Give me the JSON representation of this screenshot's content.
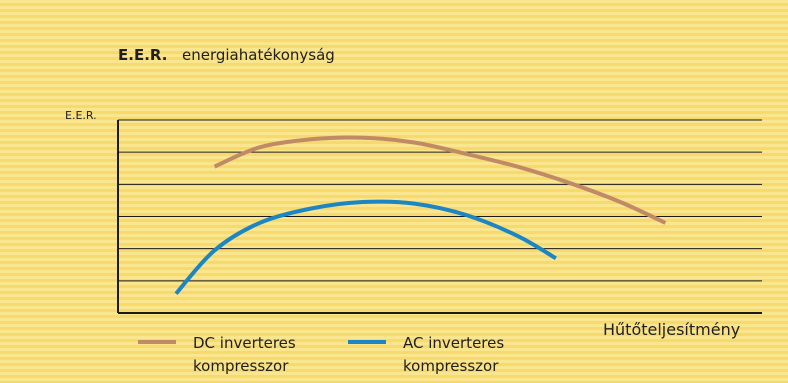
{
  "colors": {
    "background": "#fbe690",
    "stripe": "#f7d96c",
    "grid": "#1a1a1a",
    "dc_series": "#c18a67",
    "ac_series": "#1b86c3"
  },
  "chart_data": {
    "type": "line",
    "title": "E.E.R.",
    "title_rest": "energiahatékonyság",
    "ylabel": "E.E.R.",
    "xlabel": "Hűtőteljesítmény",
    "xlim": [
      0,
      100
    ],
    "ylim": [
      0,
      6
    ],
    "grid": true,
    "legend_position": "bottom-left",
    "series": [
      {
        "key": "dc",
        "name_line1": "DC inverteres",
        "name_line2": "kompresszor",
        "color": "#c18a67",
        "x": [
          15,
          22,
          30,
          38,
          46,
          54,
          62,
          70,
          78,
          85
        ],
        "y": [
          4.55,
          5.15,
          5.4,
          5.45,
          5.3,
          4.95,
          4.55,
          4.05,
          3.45,
          2.8
        ]
      },
      {
        "key": "ac",
        "name_line1": "AC inverteres",
        "name_line2": "kompresszor",
        "color": "#1b86c3",
        "x": [
          9,
          15,
          22,
          30,
          38,
          46,
          54,
          62,
          68
        ],
        "y": [
          0.6,
          1.95,
          2.8,
          3.25,
          3.45,
          3.4,
          3.05,
          2.4,
          1.7
        ]
      }
    ]
  }
}
